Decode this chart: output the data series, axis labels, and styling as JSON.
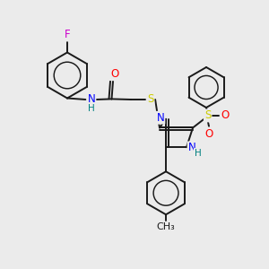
{
  "background_color": "#ebebeb",
  "atom_colors": {
    "C": "#000000",
    "N": "#0000ff",
    "O": "#ff0000",
    "S": "#cccc00",
    "F": "#cc00cc",
    "H": "#008080"
  },
  "bond_color": "#1a1a1a",
  "bond_width": 1.4,
  "font_size_atoms": 8.5,
  "fig_w": 3.0,
  "fig_h": 3.0,
  "dpi": 100
}
